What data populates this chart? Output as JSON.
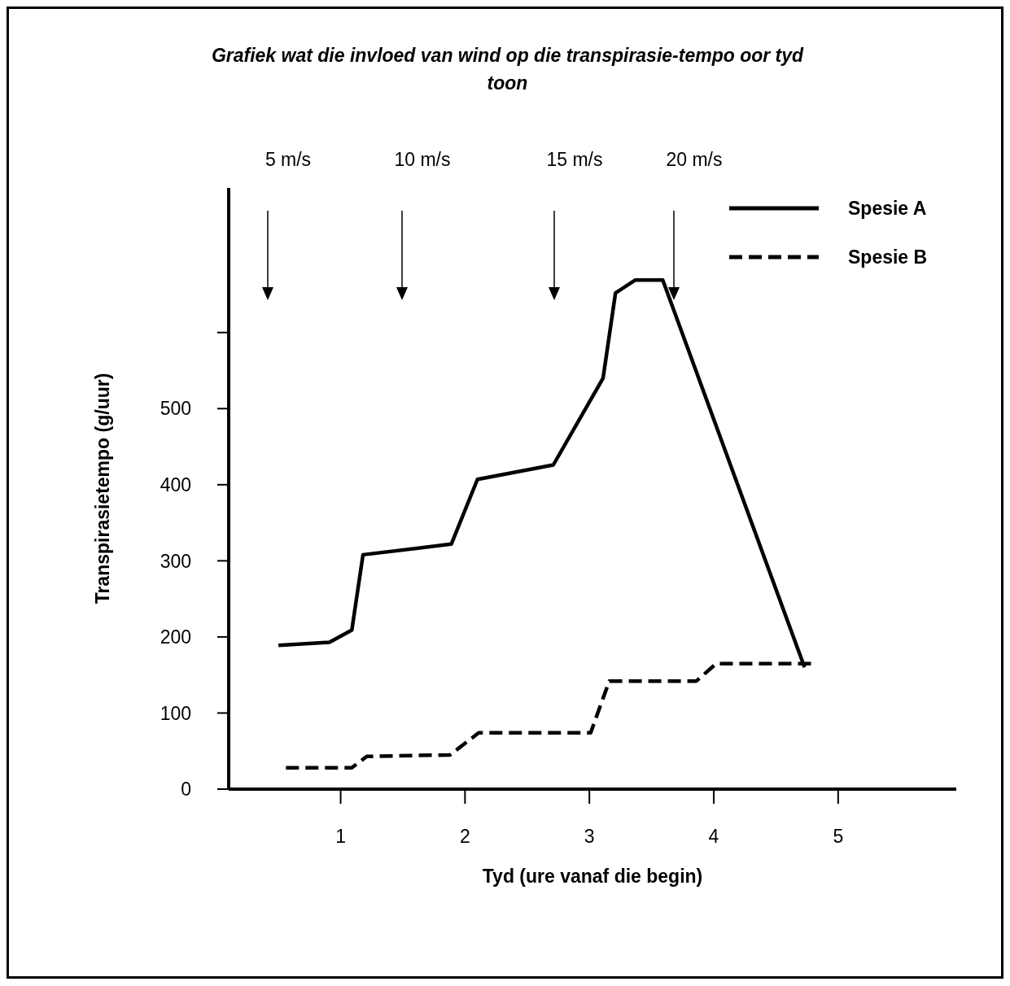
{
  "chart_data": {
    "type": "line",
    "title": "Grafiek wat die invloed van wind op die transpirasie-tempo oor tyd toon",
    "xlabel": "Tyd (ure vanaf die begin)",
    "ylabel": "Transpirasietempo (g/uur)",
    "xlim": [
      0.1,
      5.95
    ],
    "ylim": [
      0,
      790
    ],
    "xticks": [
      1,
      2,
      3,
      4,
      5
    ],
    "yticks": [
      0,
      100,
      200,
      300,
      400,
      500,
      {
        "value": 600,
        "label": null
      }
    ],
    "grid": false,
    "legend": "top right",
    "marker": "none",
    "annotations": [
      "5 m/s",
      "10 m/s",
      "15 m/s",
      "20 m/s"
    ],
    "series": [
      {
        "name": "Spesie A",
        "color": "#000000",
        "line_style": "solid",
        "x": [
          0.5,
          0.91,
          1.09,
          1.18,
          1.89,
          2.1,
          2.71,
          3.11,
          3.21,
          3.37,
          3.59,
          4.73
        ],
        "values": [
          189,
          193,
          209,
          308,
          322,
          407,
          426,
          540,
          652,
          669,
          669,
          160
        ]
      },
      {
        "name": "Spesie B",
        "color": "#000000",
        "line_style": "dashed",
        "x": [
          0.56,
          1.09,
          1.21,
          1.88,
          2.11,
          3.01,
          3.16,
          3.86,
          4.02,
          4.81
        ],
        "values": [
          28,
          28,
          43,
          45,
          74,
          74,
          142,
          142,
          165,
          165
        ]
      }
    ]
  }
}
